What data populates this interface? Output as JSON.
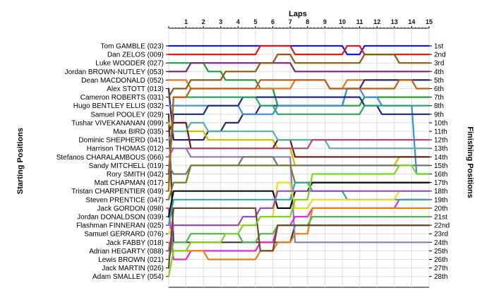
{
  "chart_data": {
    "type": "line",
    "title": "",
    "xlabel": "Laps",
    "ylabel_left": "Starting Positions",
    "ylabel_right": "Finishing Positions",
    "laps": [
      1,
      2,
      3,
      4,
      5,
      6,
      7,
      8,
      9,
      10,
      11,
      12,
      13,
      14,
      15
    ],
    "x_range": [
      0,
      15
    ],
    "position_count": 28,
    "grid": true,
    "drivers": [
      "Tom GAMBLE (023)",
      "Dan ZELOS (009)",
      "Luke WOODER (027)",
      "Jordan BROWN-NUTLEY (053)",
      "Dean MACDONALD (052)",
      "Alex STOTT (013)",
      "Cameron ROBERTS (031)",
      "Hugo BENTLEY ELLIS (032)",
      "Samuel POOLEY (029)",
      "Tushar VIVEKANANAN (099)",
      "Max BIRD (035)",
      "Dominic SHEPHERD (041)",
      "Harrison THOMAS (012)",
      "Stefanos CHARALAMBOUS (066)",
      "Sandy MITCHELL (019)",
      "Rory SMITH (042)",
      "Matt CHAPMAN (017)",
      "Tristan CHARPENTIER (049)",
      "Steven PRENTICE (047)",
      "Jack GORDON (098)",
      "Jordan DONALDSON (039)",
      "Flashman FINNERAN (025)",
      "Samuel GERRARD (076)",
      "Jack FABBY (018)",
      "Adrian HEGARTY (088)",
      "Lewis BROWN (021)",
      "Jack MARTIN (026)",
      "Adam SMALLEY (054)"
    ],
    "finishing_positions": [
      "1st",
      "2nd",
      "3rd",
      "4th",
      "5th",
      "6th",
      "7th",
      "8th",
      "9th",
      "10th",
      "11th",
      "12th",
      "13th",
      "14th",
      "15th",
      "16th",
      "17th",
      "18th",
      "19th",
      "20th",
      "21st",
      "22nd",
      "23rd",
      "24th",
      "25th",
      "26th",
      "27th",
      "28th"
    ],
    "series": [
      {
        "start": 1,
        "color": "#1a1ad6",
        "positions": [
          1,
          1,
          1,
          1,
          1,
          1,
          1,
          1,
          1,
          1,
          2,
          1,
          1,
          1,
          1
        ]
      },
      {
        "start": 2,
        "color": "#d51d1d",
        "positions": [
          2,
          2,
          2,
          2,
          2,
          1,
          1,
          2,
          2,
          2,
          1,
          2,
          2,
          2,
          2
        ]
      },
      {
        "start": 3,
        "color": "#1f9e3a",
        "positions": [
          3,
          3,
          4,
          5,
          5,
          6,
          8,
          8,
          8,
          8,
          8,
          7,
          7,
          7,
          7
        ]
      },
      {
        "start": 4,
        "color": "#7a2480",
        "positions": [
          4,
          3,
          3,
          3,
          3,
          3,
          3,
          4,
          4,
          4,
          4,
          4,
          4,
          4,
          4
        ]
      },
      {
        "start": 5,
        "color": "#e07818",
        "positions": [
          5,
          6,
          6,
          6,
          6,
          6,
          6,
          5,
          5,
          6,
          5,
          5,
          5,
          5,
          5
        ]
      },
      {
        "start": 6,
        "color": "#2a2a6a",
        "positions": [
          12,
          12,
          11,
          10,
          9,
          8,
          8,
          8,
          8,
          8,
          6,
          5,
          5,
          5,
          5
        ]
      },
      {
        "start": 7,
        "color": "#8b5a14",
        "positions": [
          6,
          5,
          5,
          4,
          4,
          3,
          2,
          3,
          3,
          3,
          3,
          2,
          2,
          3,
          3
        ]
      },
      {
        "start": 8,
        "color": "#3a8fe0",
        "positions": [
          8,
          8,
          8,
          8,
          9,
          9,
          8,
          8,
          8,
          8,
          6,
          7,
          8,
          8,
          16
        ]
      },
      {
        "start": 9,
        "color": "#3a3a3a",
        "positions": [
          24,
          24,
          24,
          24,
          24,
          24,
          24,
          22,
          22,
          22,
          22,
          22,
          22,
          22,
          22
        ]
      },
      {
        "start": 10,
        "color": "#c9c100",
        "positions": [
          11,
          11,
          12,
          12,
          12,
          12,
          13,
          15,
          15,
          15,
          15,
          15,
          15,
          14,
          14
        ]
      },
      {
        "start": 11,
        "color": "#6a1a1a",
        "positions": [
          10,
          13,
          13,
          13,
          13,
          13,
          12,
          14,
          14,
          14,
          14,
          14,
          14,
          14,
          14
        ]
      },
      {
        "start": 12,
        "color": "#5ab0a8",
        "positions": [
          11,
          10,
          11,
          11,
          11,
          11,
          12,
          12,
          12,
          13,
          13,
          13,
          13,
          13,
          13
        ]
      },
      {
        "start": 13,
        "color": "#b4497a",
        "positions": [
          13,
          13,
          13,
          13,
          13,
          13,
          13,
          13,
          12,
          12,
          12,
          12,
          12,
          12,
          12
        ]
      },
      {
        "start": 14,
        "color": "#8a7ac2",
        "positions": [
          13,
          14,
          14,
          14,
          14,
          14,
          14,
          24,
          24,
          24,
          24,
          24,
          24,
          24,
          24
        ]
      },
      {
        "start": 15,
        "color": "#757575",
        "positions": [
          16,
          15,
          15,
          15,
          14,
          14,
          15,
          15,
          15,
          15,
          15,
          15,
          15,
          15,
          15
        ]
      },
      {
        "start": 16,
        "color": "#1b2a88",
        "positions": [
          9,
          9,
          8,
          8,
          7,
          7,
          7,
          7,
          7,
          7,
          7,
          8,
          9,
          9,
          9
        ]
      },
      {
        "start": 17,
        "color": "#23a867",
        "positions": [
          7,
          7,
          7,
          7,
          7,
          8,
          9,
          9,
          9,
          9,
          9,
          8,
          8,
          8,
          8
        ]
      },
      {
        "start": 18,
        "color": "#c25d10",
        "positions": [
          7,
          6,
          6,
          6,
          6,
          5,
          5,
          5,
          5,
          6,
          6,
          6,
          6,
          5,
          6
        ]
      },
      {
        "start": 19,
        "color": "#7b7b24",
        "positions": [
          17,
          15,
          15,
          15,
          15,
          15,
          15,
          17,
          17,
          17,
          17,
          17,
          17,
          17,
          17
        ]
      },
      {
        "start": 20,
        "color": "#df2bd8",
        "positions": [
          26,
          25,
          25,
          25,
          25,
          24,
          22,
          21,
          20,
          20,
          20,
          20,
          20,
          19,
          19
        ]
      },
      {
        "start": 21,
        "color": "#101010",
        "positions": [
          18,
          18,
          18,
          18,
          18,
          18,
          20,
          18,
          17,
          17,
          17,
          17,
          17,
          17,
          17
        ]
      },
      {
        "start": 22,
        "color": "#2ea6a0",
        "positions": [
          19,
          19,
          19,
          19,
          19,
          19,
          19,
          17,
          18,
          18,
          19,
          19,
          19,
          19,
          19
        ]
      },
      {
        "start": 23,
        "color": "#e8dc17",
        "positions": [
          22,
          22,
          22,
          22,
          22,
          21,
          17,
          20,
          19,
          19,
          19,
          19,
          19,
          18,
          18
        ]
      },
      {
        "start": 24,
        "color": "#e4801a",
        "positions": [
          25,
          25,
          26,
          26,
          26,
          25,
          24,
          23,
          20,
          20,
          20,
          20,
          20,
          20,
          20
        ]
      },
      {
        "start": 25,
        "color": "#9a4ac2",
        "positions": [
          22,
          22,
          22,
          22,
          21,
          20,
          18,
          18,
          18,
          18,
          18,
          18,
          18,
          18,
          18
        ]
      },
      {
        "start": 26,
        "color": "#52b44a",
        "positions": [
          24,
          23,
          23,
          23,
          24,
          23,
          22,
          22,
          21,
          21,
          21,
          21,
          21,
          21,
          21
        ]
      },
      {
        "start": 27,
        "color": "#6e4a2a",
        "positions": [
          20,
          20,
          20,
          20,
          20,
          25,
          22,
          22,
          22,
          22,
          22,
          22,
          22,
          22,
          22
        ]
      },
      {
        "start": 28,
        "color": "#7ed321",
        "positions": [
          25,
          24,
          24,
          23,
          22,
          21,
          21,
          19,
          16,
          16,
          16,
          16,
          16,
          15,
          16
        ]
      }
    ]
  }
}
